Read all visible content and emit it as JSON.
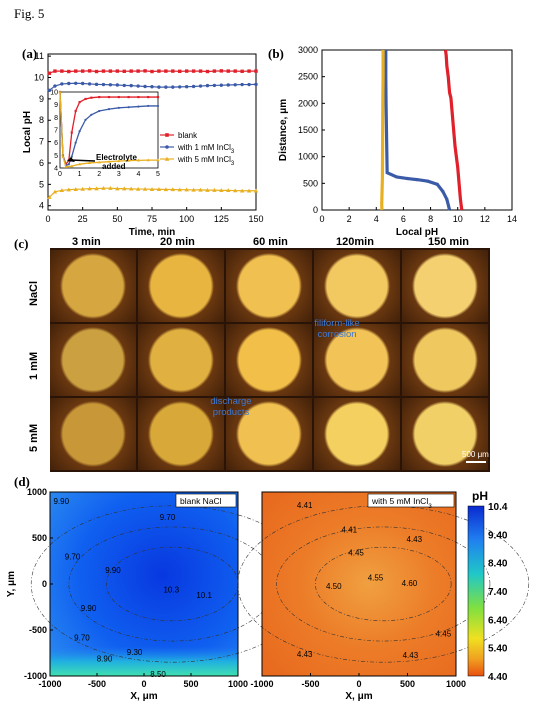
{
  "figure_label": "Fig. 5",
  "panels": {
    "a": "(a)",
    "b": "(b)",
    "c": "(c)",
    "d": "(d)"
  },
  "chart_data": [
    {
      "type": "line",
      "panel": "a",
      "xlabel": "Time, min",
      "ylabel": "Local pH",
      "xlim": [
        0,
        150
      ],
      "ylim": [
        3.8,
        11.1
      ],
      "xticks": [
        0,
        25,
        50,
        75,
        100,
        125,
        150
      ],
      "yticks": [
        4,
        5,
        6,
        7,
        8,
        9,
        10,
        11
      ],
      "legend_position": "center-right",
      "series": [
        {
          "name": "blank",
          "color": "#e0202a",
          "marker": "square",
          "x": [
            1,
            5,
            10,
            15,
            20,
            25,
            30,
            35,
            40,
            45,
            50,
            55,
            60,
            65,
            70,
            75,
            80,
            85,
            90,
            95,
            100,
            105,
            110,
            115,
            120,
            125,
            130,
            135,
            140,
            145,
            150
          ],
          "y": [
            10.2,
            10.3,
            10.3,
            10.28,
            10.3,
            10.3,
            10.31,
            10.28,
            10.3,
            10.3,
            10.3,
            10.29,
            10.3,
            10.3,
            10.31,
            10.28,
            10.3,
            10.3,
            10.3,
            10.29,
            10.3,
            10.3,
            10.3,
            10.28,
            10.3,
            10.31,
            10.3,
            10.3,
            10.29,
            10.3,
            10.3
          ]
        },
        {
          "name": "with 1 mM InCl3",
          "color": "#3b5ba8",
          "marker": "circle",
          "x": [
            1,
            5,
            10,
            15,
            20,
            25,
            30,
            35,
            40,
            45,
            50,
            55,
            60,
            65,
            70,
            75,
            80,
            85,
            90,
            95,
            100,
            105,
            110,
            115,
            120,
            125,
            130,
            135,
            140,
            145,
            150
          ],
          "y": [
            9.4,
            9.6,
            9.7,
            9.72,
            9.73,
            9.72,
            9.7,
            9.68,
            9.67,
            9.66,
            9.65,
            9.63,
            9.62,
            9.6,
            9.58,
            9.57,
            9.55,
            9.55,
            9.55,
            9.56,
            9.57,
            9.58,
            9.6,
            9.62,
            9.63,
            9.64,
            9.65,
            9.66,
            9.67,
            9.67,
            9.68
          ]
        },
        {
          "name": "with 5 mM InCl3",
          "color": "#e8b020",
          "marker": "triangle",
          "x": [
            1,
            5,
            10,
            15,
            20,
            25,
            30,
            35,
            40,
            45,
            50,
            55,
            60,
            65,
            70,
            75,
            80,
            85,
            90,
            95,
            100,
            105,
            110,
            115,
            120,
            125,
            130,
            135,
            140,
            145,
            150
          ],
          "y": [
            4.4,
            4.65,
            4.72,
            4.75,
            4.77,
            4.78,
            4.8,
            4.8,
            4.82,
            4.82,
            4.8,
            4.8,
            4.79,
            4.78,
            4.78,
            4.77,
            4.77,
            4.76,
            4.76,
            4.75,
            4.75,
            4.74,
            4.74,
            4.73,
            4.73,
            4.72,
            4.72,
            4.71,
            4.7,
            4.7,
            4.7
          ]
        }
      ],
      "inset": {
        "xlim": [
          0,
          5
        ],
        "ylim": [
          4,
          10
        ],
        "xticks": [
          0,
          1,
          2,
          3,
          4,
          5
        ],
        "yticks": [
          4,
          5,
          6,
          7,
          8,
          9,
          10
        ],
        "annotation": "Electrolyte added",
        "series": [
          {
            "name": "blank",
            "x": [
              0,
              0.15,
              0.3,
              0.45,
              0.6,
              0.8,
              1.0,
              1.3,
              1.6,
              2.0,
              2.5,
              3.0,
              3.5,
              4.0,
              4.5,
              5.0
            ],
            "y": [
              10,
              5.0,
              4.3,
              4.6,
              6.8,
              8.5,
              9.2,
              9.45,
              9.55,
              9.6,
              9.6,
              9.6,
              9.6,
              9.6,
              9.6,
              9.6
            ]
          },
          {
            "name": "with 1 mM InCl3",
            "x": [
              0,
              0.15,
              0.3,
              0.45,
              0.6,
              0.8,
              1.0,
              1.3,
              1.6,
              2.0,
              2.5,
              3.0,
              3.5,
              4.0,
              4.5,
              5.0
            ],
            "y": [
              10,
              5.0,
              4.2,
              4.3,
              4.9,
              6.0,
              6.9,
              7.8,
              8.2,
              8.5,
              8.65,
              8.75,
              8.8,
              8.85,
              8.9,
              8.9
            ]
          },
          {
            "name": "with 5 mM InCl3",
            "x": [
              0,
              0.15,
              0.3,
              0.6,
              1.0,
              1.5,
              2.0,
              2.5,
              3.0,
              3.5,
              4.0,
              4.5,
              5.0
            ],
            "y": [
              10,
              4.9,
              4.1,
              4.15,
              4.3,
              4.4,
              4.45,
              4.5,
              4.55,
              4.58,
              4.6,
              4.62,
              4.62
            ]
          }
        ]
      }
    },
    {
      "type": "line",
      "panel": "b",
      "xlabel": "Local pH",
      "ylabel": "Distance, μm",
      "xlim": [
        0,
        14
      ],
      "ylim": [
        0,
        3000
      ],
      "xticks": [
        0,
        2,
        4,
        6,
        8,
        10,
        12,
        14
      ],
      "yticks": [
        0,
        500,
        1000,
        1500,
        2000,
        2500,
        3000
      ],
      "series": [
        {
          "name": "blank",
          "color": "#e0202a",
          "x": [
            9.1,
            9.15,
            9.2,
            9.3,
            9.4,
            9.5,
            9.6,
            9.7,
            9.8,
            9.9,
            10.0,
            10.1,
            10.2,
            10.3
          ],
          "y": [
            3000,
            2900,
            2700,
            2500,
            2200,
            2100,
            1800,
            1500,
            1200,
            1000,
            800,
            500,
            200,
            0
          ]
        },
        {
          "name": "with 1 mM InCl3",
          "color": "#3b5ba8",
          "x": [
            4.7,
            4.7,
            4.72,
            4.75,
            4.8,
            5.5,
            6.3,
            7.0,
            7.8,
            8.5,
            8.9,
            9.2,
            9.4
          ],
          "y": [
            3000,
            2500,
            2000,
            1500,
            700,
            620,
            590,
            570,
            540,
            480,
            350,
            200,
            0
          ]
        },
        {
          "name": "with 5 mM InCl3",
          "color": "#e8b020",
          "x": [
            4.5,
            4.5,
            4.48,
            4.47,
            4.46,
            4.45,
            4.42,
            4.4,
            4.42
          ],
          "y": [
            3000,
            2500,
            2000,
            1500,
            1000,
            600,
            300,
            100,
            0
          ]
        }
      ]
    },
    {
      "type": "heatmap",
      "panel": "d-left",
      "title": "blank NaCl",
      "xlabel": "X, μm",
      "ylabel": "Y, μm",
      "xlim": [
        -1000,
        1000
      ],
      "ylim": [
        -1000,
        1000
      ],
      "xticks": [
        -1000,
        -500,
        0,
        500,
        1000
      ],
      "yticks": [
        -1000,
        -500,
        0,
        500,
        1000
      ],
      "contour_labels": [
        {
          "text": "9.90",
          "x": -880,
          "y": 900
        },
        {
          "text": "9.70",
          "x": 250,
          "y": 730
        },
        {
          "text": "9.70",
          "x": -760,
          "y": 300
        },
        {
          "text": "9.90",
          "x": -330,
          "y": 150
        },
        {
          "text": "10.3",
          "x": 290,
          "y": -60
        },
        {
          "text": "10.1",
          "x": 640,
          "y": -120
        },
        {
          "text": "9.90",
          "x": -590,
          "y": -260
        },
        {
          "text": "9.70",
          "x": -660,
          "y": -580
        },
        {
          "text": "9.30",
          "x": -100,
          "y": -740
        },
        {
          "text": "8.90",
          "x": -420,
          "y": -810
        },
        {
          "text": "8.50",
          "x": 150,
          "y": -980
        }
      ]
    },
    {
      "type": "heatmap",
      "panel": "d-right",
      "title": "with 5 mM InCl3",
      "xlabel": "X, μm",
      "xlim": [
        -1000,
        1000
      ],
      "ylim": [
        -1000,
        1000
      ],
      "xticks": [
        -1000,
        -500,
        0,
        500,
        1000
      ],
      "contour_labels": [
        {
          "text": "4.41",
          "x": -560,
          "y": 860
        },
        {
          "text": "4.41",
          "x": -100,
          "y": 590
        },
        {
          "text": "4.43",
          "x": 570,
          "y": 490
        },
        {
          "text": "4.45",
          "x": -30,
          "y": 340
        },
        {
          "text": "4.55",
          "x": 170,
          "y": 70
        },
        {
          "text": "4.60",
          "x": 520,
          "y": 10
        },
        {
          "text": "4.50",
          "x": -260,
          "y": -20
        },
        {
          "text": "4.45",
          "x": 870,
          "y": -540
        },
        {
          "text": "4.43",
          "x": -560,
          "y": -760
        },
        {
          "text": "4.43",
          "x": 530,
          "y": -770
        }
      ],
      "colorbar": {
        "title": "pH",
        "ticks": [
          "10.4",
          "9.40",
          "8.40",
          "7.40",
          "6.40",
          "5.40",
          "4.40"
        ]
      }
    }
  ],
  "micrographs": {
    "columns": [
      "3 min",
      "20 min",
      "60 min",
      "120min",
      "150 min"
    ],
    "rows": [
      "NaCl",
      "1 mM",
      "5 mM"
    ],
    "annotations": {
      "filiform": [
        "filiform-like",
        "corrosion"
      ],
      "discharge": [
        "discharge",
        "products"
      ]
    },
    "scale_bar": "500 μm"
  },
  "colors": {
    "blank": "#e0202a",
    "mm1": "#3b5ba8",
    "mm5": "#e8b020"
  }
}
